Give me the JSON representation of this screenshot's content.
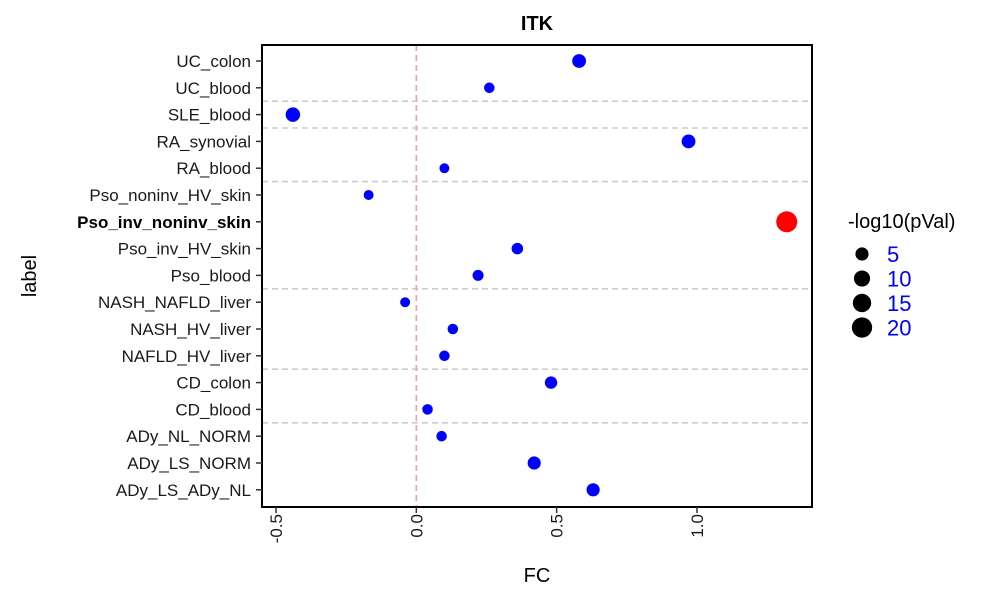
{
  "chart_data": {
    "type": "scatter",
    "title": "ITK",
    "xlabel": "FC",
    "ylabel": "label",
    "xlim": [
      -0.55,
      1.41
    ],
    "x_ticks": [
      -0.5,
      0.0,
      0.5,
      1.0
    ],
    "x_tick_labels": [
      "-0.5",
      "0.0",
      "0.5",
      "1.0"
    ],
    "categories": [
      "UC_colon",
      "UC_blood",
      "SLE_blood",
      "RA_synovial",
      "RA_blood",
      "Pso_noninv_HV_skin",
      "Pso_inv_noninv_skin",
      "Pso_inv_HV_skin",
      "Pso_blood",
      "NASH_NAFLD_liver",
      "NASH_HV_liver",
      "NAFLD_HV_liver",
      "CD_colon",
      "CD_blood",
      "ADy_NL_NORM",
      "ADy_LS_NORM",
      "ADy_LS_ADy_NL"
    ],
    "highlight_label": "Pso_inv_noninv_skin",
    "points": [
      {
        "label": "UC_colon",
        "fc": 0.58,
        "neglog10p": 6,
        "color": "#0000ff"
      },
      {
        "label": "UC_blood",
        "fc": 0.26,
        "neglog10p": 2,
        "color": "#0000ff"
      },
      {
        "label": "SLE_blood",
        "fc": -0.44,
        "neglog10p": 7,
        "color": "#0000ff"
      },
      {
        "label": "RA_synovial",
        "fc": 0.97,
        "neglog10p": 6,
        "color": "#0000ff"
      },
      {
        "label": "RA_blood",
        "fc": 0.1,
        "neglog10p": 1.5,
        "color": "#0000ff"
      },
      {
        "label": "Pso_noninv_HV_skin",
        "fc": -0.17,
        "neglog10p": 1.5,
        "color": "#0000ff"
      },
      {
        "label": "Pso_inv_noninv_skin",
        "fc": 1.32,
        "neglog10p": 22,
        "color": "#ff0000"
      },
      {
        "label": "Pso_inv_HV_skin",
        "fc": 0.36,
        "neglog10p": 3,
        "color": "#0000ff"
      },
      {
        "label": "Pso_blood",
        "fc": 0.22,
        "neglog10p": 2.5,
        "color": "#0000ff"
      },
      {
        "label": "NASH_NAFLD_liver",
        "fc": -0.04,
        "neglog10p": 1.5,
        "color": "#0000ff"
      },
      {
        "label": "NASH_HV_liver",
        "fc": 0.13,
        "neglog10p": 2,
        "color": "#0000ff"
      },
      {
        "label": "NAFLD_HV_liver",
        "fc": 0.1,
        "neglog10p": 2,
        "color": "#0000ff"
      },
      {
        "label": "CD_colon",
        "fc": 0.48,
        "neglog10p": 4,
        "color": "#0000ff"
      },
      {
        "label": "CD_blood",
        "fc": 0.04,
        "neglog10p": 2,
        "color": "#0000ff"
      },
      {
        "label": "ADy_NL_NORM",
        "fc": 0.09,
        "neglog10p": 2,
        "color": "#0000ff"
      },
      {
        "label": "ADy_LS_NORM",
        "fc": 0.42,
        "neglog10p": 5,
        "color": "#0000ff"
      },
      {
        "label": "ADy_LS_ADy_NL",
        "fc": 0.63,
        "neglog10p": 5,
        "color": "#0000ff"
      }
    ],
    "vline": {
      "x": 0,
      "color": "#f4a0a0",
      "style": "dashed"
    },
    "group_separators_between": [
      [
        "UC_blood",
        "SLE_blood"
      ],
      [
        "SLE_blood",
        "RA_synovial"
      ],
      [
        "RA_blood",
        "Pso_noninv_HV_skin"
      ],
      [
        "Pso_blood",
        "NASH_NAFLD_liver"
      ],
      [
        "NAFLD_HV_liver",
        "CD_colon"
      ],
      [
        "CD_blood",
        "ADy_NL_NORM"
      ]
    ],
    "grid": false,
    "legend": {
      "title": "-log10(pVal)",
      "placement": "right",
      "entries": [
        {
          "label": "5",
          "value": 5
        },
        {
          "label": "10",
          "value": 10
        },
        {
          "label": "15",
          "value": 15
        },
        {
          "label": "20",
          "value": 20
        }
      ],
      "marker_color": "#000000",
      "label_color": "#0000ff"
    }
  }
}
